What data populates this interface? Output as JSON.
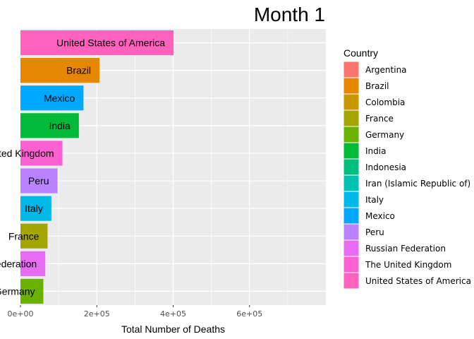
{
  "chart_data": {
    "type": "bar",
    "orientation": "horizontal",
    "title": "Month 1",
    "xlabel": "Total Number of Deaths",
    "ylabel": "",
    "xlim": [
      0,
      800000
    ],
    "x_ticks": [
      0,
      200000,
      400000,
      600000
    ],
    "x_tick_labels": [
      "0e+00",
      "2e+05",
      "4e+05",
      "6e+05"
    ],
    "grid": true,
    "legend_position": "right",
    "legend_title": "Country",
    "bars": [
      {
        "label": "United States of America",
        "value": 401000,
        "color": "#FF62BC"
      },
      {
        "label": "Brazil",
        "value": 207000,
        "color": "#E58700"
      },
      {
        "label": "Mexico",
        "value": 165000,
        "color": "#00A9FF"
      },
      {
        "label": "India",
        "value": 153000,
        "color": "#00BA38"
      },
      {
        "label": "The United Kingdom",
        "value": 110000,
        "color": "#FD61D1"
      },
      {
        "label": "Peru",
        "value": 97000,
        "color": "#B983FF"
      },
      {
        "label": "Italy",
        "value": 81000,
        "color": "#00B8E7"
      },
      {
        "label": "France",
        "value": 71000,
        "color": "#A3A500"
      },
      {
        "label": "Russian Federation",
        "value": 65000,
        "color": "#E76BF3"
      },
      {
        "label": "Germany",
        "value": 60000,
        "color": "#6BB100"
      }
    ],
    "legend": [
      {
        "label": "Argentina",
        "color": "#F8766D"
      },
      {
        "label": "Brazil",
        "color": "#E58700"
      },
      {
        "label": "Colombia",
        "color": "#C99800"
      },
      {
        "label": "France",
        "color": "#A3A500"
      },
      {
        "label": "Germany",
        "color": "#6BB100"
      },
      {
        "label": "India",
        "color": "#00BA38"
      },
      {
        "label": "Indonesia",
        "color": "#00BF7D"
      },
      {
        "label": "Iran (Islamic Republic of)",
        "color": "#00C0AF"
      },
      {
        "label": "Italy",
        "color": "#00B8E7"
      },
      {
        "label": "Mexico",
        "color": "#00A9FF"
      },
      {
        "label": "Peru",
        "color": "#B983FF"
      },
      {
        "label": "Russian Federation",
        "color": "#E76BF3"
      },
      {
        "label": "The United Kingdom",
        "color": "#FD61D1"
      },
      {
        "label": "United States of America",
        "color": "#FF62BC"
      }
    ],
    "colors": {
      "panel": "#EBEBEB",
      "grid": "#FFFFFF"
    }
  }
}
